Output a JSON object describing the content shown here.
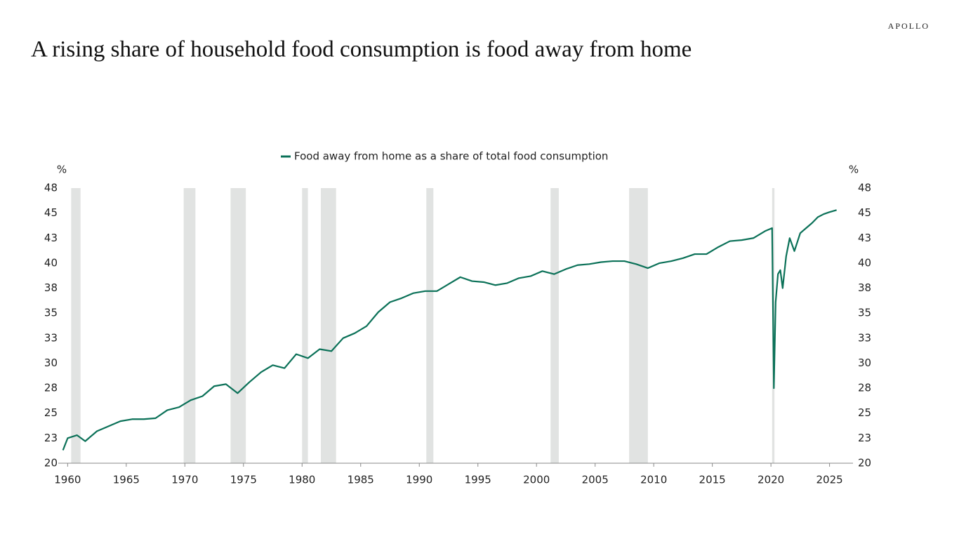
{
  "brand": "APOLLO",
  "chart_data": {
    "type": "line",
    "title": "A rising share of household food consumption is food away from home",
    "ylabel": "%",
    "xlim": [
      1959.2,
      2027
    ],
    "xticks": [
      1960,
      1965,
      1970,
      1975,
      1980,
      1985,
      1990,
      1995,
      2000,
      2005,
      2010,
      2015,
      2020,
      2025
    ],
    "ylim": [
      20,
      47.5
    ],
    "yticks": [
      20,
      {
        "value": 22.5,
        "label": "23"
      },
      25,
      {
        "value": 27.5,
        "label": "28"
      },
      30,
      {
        "value": 32.5,
        "label": "33"
      },
      35,
      {
        "value": 37.5,
        "label": "38"
      },
      40,
      {
        "value": 42.5,
        "label": "43"
      },
      45,
      {
        "value": 47.5,
        "label": "48"
      }
    ],
    "recessions": [
      [
        1960.3,
        1961.1
      ],
      [
        1969.9,
        1970.9
      ],
      [
        1973.9,
        1975.2
      ],
      [
        1980.0,
        1980.5
      ],
      [
        1981.6,
        1982.9
      ],
      [
        1990.6,
        1991.2
      ],
      [
        2001.2,
        2001.9
      ],
      [
        2007.9,
        2009.5
      ],
      [
        2020.1,
        2020.3
      ]
    ],
    "x": [
      1959.6,
      1960,
      1960.8,
      1961.5,
      1962.5,
      1963.5,
      1964.5,
      1965.5,
      1966.5,
      1967.5,
      1968.5,
      1969.5,
      1970.5,
      1971.5,
      1972.5,
      1973.5,
      1974.5,
      1975.5,
      1976.5,
      1977.5,
      1978.5,
      1979.5,
      1980.5,
      1981.5,
      1982.5,
      1983.5,
      1984.5,
      1985.5,
      1986.5,
      1987.5,
      1988.5,
      1989.5,
      1990.5,
      1991.5,
      1992.5,
      1993.5,
      1994.5,
      1995.5,
      1996.5,
      1997.5,
      1998.5,
      1999.5,
      2000.5,
      2001.5,
      2002.5,
      2003.5,
      2004.5,
      2005.5,
      2006.5,
      2007.5,
      2008.5,
      2009.5,
      2010.5,
      2011.5,
      2012.5,
      2013.5,
      2014.5,
      2015.5,
      2016.5,
      2017.5,
      2018.5,
      2019.5,
      2020.1,
      2020.25,
      2020.4,
      2020.6,
      2020.8,
      2021.0,
      2021.3,
      2021.6,
      2022.0,
      2022.5,
      2023.0,
      2023.5,
      2024.0,
      2024.5,
      2025.0,
      2025.6
    ],
    "series": [
      {
        "name": "Food away from home as a share of total food consumption",
        "color": "#0b7158",
        "values": [
          21.3,
          22.5,
          22.8,
          22.2,
          23.2,
          23.7,
          24.2,
          24.4,
          24.4,
          24.5,
          25.3,
          25.6,
          26.3,
          26.7,
          27.7,
          27.9,
          27.0,
          28.1,
          29.1,
          29.8,
          29.5,
          30.9,
          30.5,
          31.4,
          31.2,
          32.5,
          33.0,
          33.7,
          35.1,
          36.1,
          36.5,
          37.0,
          37.2,
          37.2,
          37.9,
          38.6,
          38.2,
          38.1,
          37.8,
          38.0,
          38.5,
          38.7,
          39.2,
          38.9,
          39.4,
          39.8,
          39.9,
          40.1,
          40.2,
          40.2,
          39.9,
          39.5,
          40.0,
          40.2,
          40.5,
          40.9,
          40.9,
          41.6,
          42.2,
          42.3,
          42.5,
          43.2,
          43.5,
          27.5,
          36.1,
          38.9,
          39.3,
          37.5,
          40.7,
          42.5,
          41.2,
          43.0,
          43.5,
          44.0,
          44.6,
          44.9,
          45.1,
          45.3
        ]
      }
    ]
  }
}
